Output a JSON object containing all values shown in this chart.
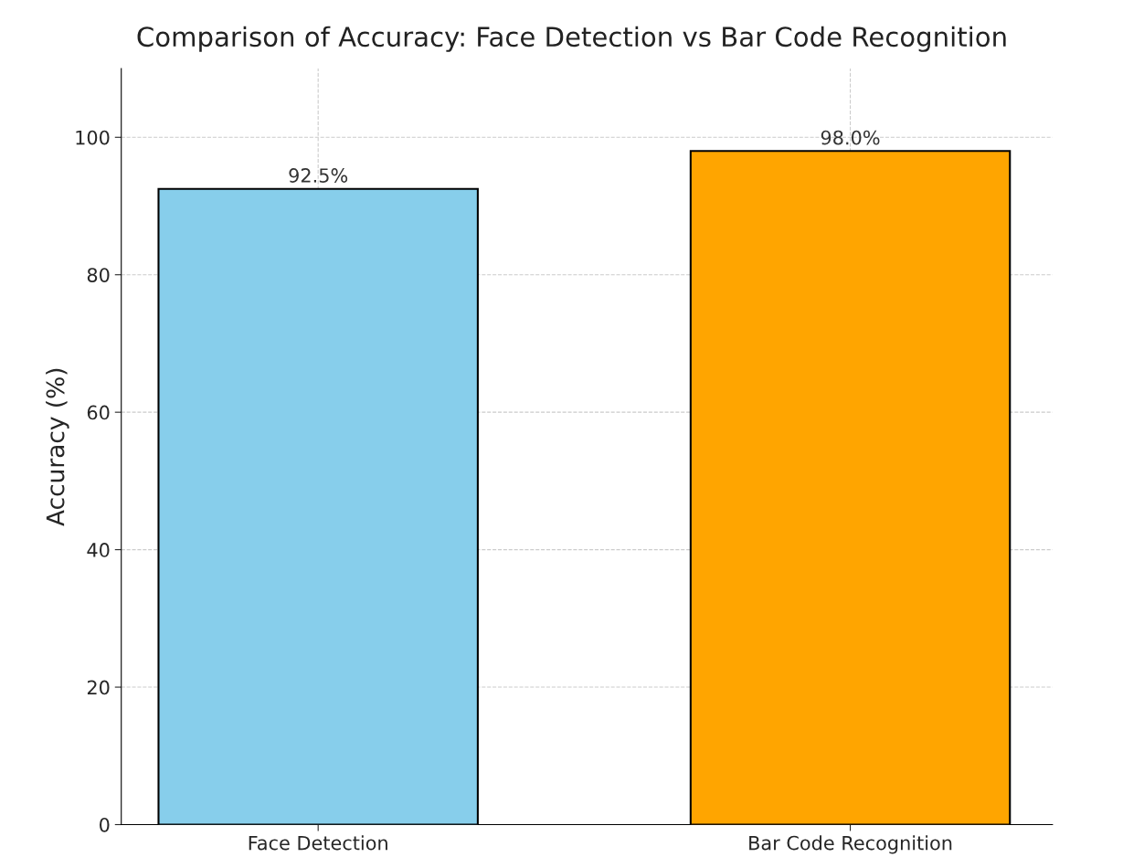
{
  "chart_data": {
    "type": "bar",
    "title": "Comparison of Accuracy: Face Detection vs Bar Code Recognition",
    "ylabel": "Accuracy (%)",
    "categories": [
      "Face Detection",
      "Bar Code Recognition"
    ],
    "values": [
      92.5,
      98.0
    ],
    "colors": [
      "#87ceeb",
      "#ffa500"
    ],
    "value_labels": [
      "92.5%",
      "98.0%"
    ],
    "ylim": [
      0,
      110
    ],
    "yticks": [
      0,
      20,
      40,
      60,
      80,
      100
    ],
    "grid": true
  }
}
